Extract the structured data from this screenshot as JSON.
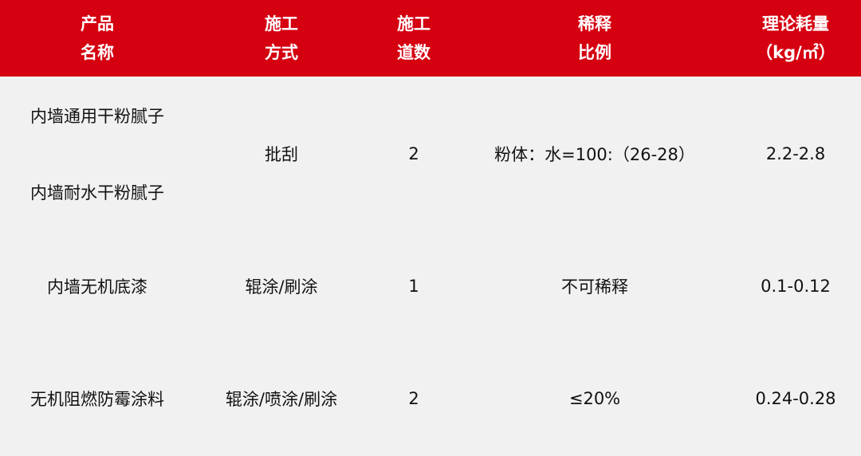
{
  "colors": {
    "header_bg": "#d50010",
    "body_bg": "#f1f1f1"
  },
  "header": [
    {
      "line1": "产品",
      "line2": "名称"
    },
    {
      "line1": "施工",
      "line2": "方式"
    },
    {
      "line1": "施工",
      "line2": "道数"
    },
    {
      "line1": "稀释",
      "line2": "比例"
    },
    {
      "line1": "理论耗量",
      "line2": "（kg/㎡）"
    }
  ],
  "rows": [
    {
      "products": [
        "内墙通用干粉腻子",
        "内墙耐水干粉腻子"
      ],
      "method": "批刮",
      "coats": "2",
      "dilution": "粉体：水=100:（26-28）",
      "consumption": "2.2-2.8"
    },
    {
      "products": [
        "内墙无机底漆"
      ],
      "method": "辊涂/刷涂",
      "coats": "1",
      "dilution": "不可稀释",
      "consumption": "0.1-0.12"
    },
    {
      "products": [
        "无机阻燃防霉涂料"
      ],
      "method": "辊涂/喷涂/刷涂",
      "coats": "2",
      "dilution": "≤20%",
      "consumption": "0.24-0.28"
    }
  ]
}
